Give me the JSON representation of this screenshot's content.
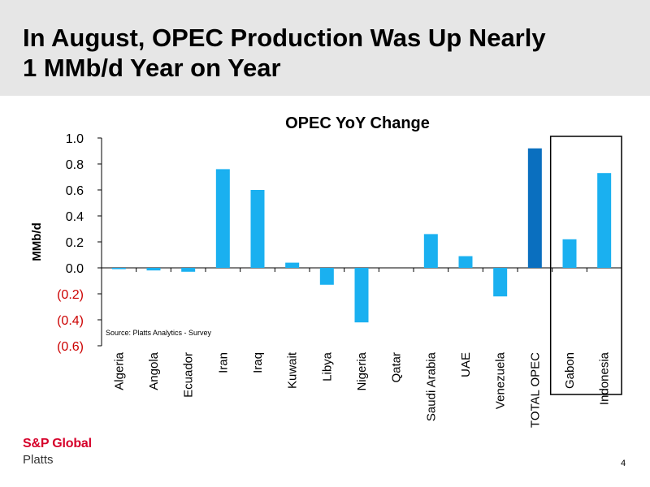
{
  "slide": {
    "title_line1": "In August, OPEC Production Was Up Nearly",
    "title_line2": "1 MMb/d Year on Year",
    "page_number": "4"
  },
  "logo": {
    "line1": "S&P Global",
    "line2": "Platts",
    "accent_color": "#d6002a"
  },
  "chart_data": {
    "type": "bar",
    "title": "OPEC YoY Change",
    "ylabel": "MMb/d",
    "xlabel": "",
    "ylim": [
      -0.6,
      1.0
    ],
    "yticks": [
      1.0,
      0.8,
      0.6,
      0.4,
      0.2,
      0.0,
      -0.2,
      -0.4,
      -0.6
    ],
    "ytick_labels": [
      "1.0",
      "0.8",
      "0.6",
      "0.4",
      "0.2",
      "0.0",
      "(0.2)",
      "(0.4)",
      "(0.6)"
    ],
    "negative_label_color": "#cc0000",
    "categories": [
      "Algeria",
      "Angola",
      "Ecuador",
      "Iran",
      "Iraq",
      "Kuwait",
      "Libya",
      "Nigeria",
      "Qatar",
      "Saudi Arabia",
      "UAE",
      "Venezuela",
      "TOTAL OPEC",
      "Gabon",
      "Indonesia"
    ],
    "values": [
      -0.01,
      -0.02,
      -0.03,
      0.76,
      0.6,
      0.04,
      -0.13,
      -0.42,
      0.0,
      0.26,
      0.09,
      -0.22,
      0.92,
      0.22,
      0.73
    ],
    "bar_color": "#1ab0f0",
    "highlight_bar": "TOTAL OPEC",
    "highlight_color": "#0a6fbf",
    "boxed_categories": [
      "Gabon",
      "Indonesia"
    ],
    "annotation": "Source: Platts Analytics  - Survey",
    "grid": false
  }
}
